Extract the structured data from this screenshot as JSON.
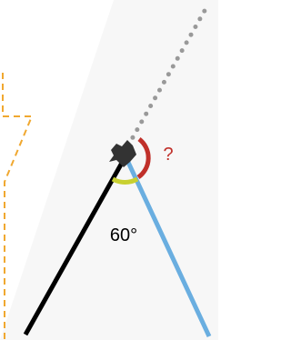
{
  "labels": {
    "unknown": "?",
    "angle": "60°"
  }
}
